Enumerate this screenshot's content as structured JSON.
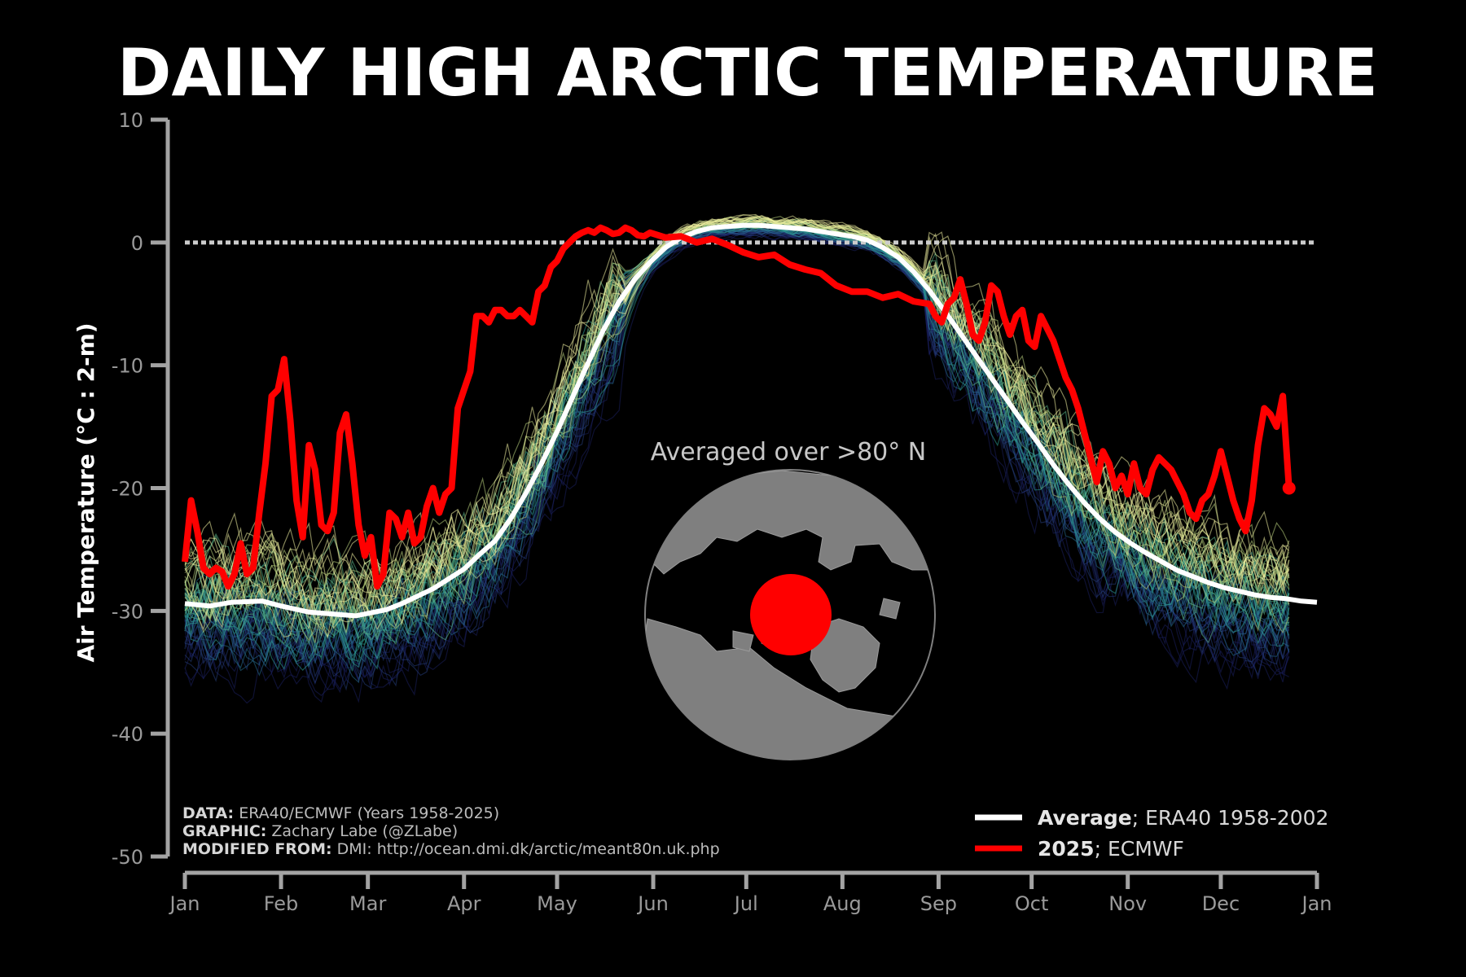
{
  "chart_data": {
    "type": "line",
    "title": "DAILY HIGH ARCTIC TEMPERATURE",
    "ylabel": "Air Temperature (°C : 2-m)",
    "xlabel": "",
    "ylim": [
      -50,
      10
    ],
    "yticks": [
      10,
      0,
      -10,
      -20,
      -30,
      -40,
      -50
    ],
    "xlim": [
      0,
      365
    ],
    "xticks": [
      {
        "label": "Jan",
        "day": 0
      },
      {
        "label": "Feb",
        "day": 31
      },
      {
        "label": "Mar",
        "day": 59
      },
      {
        "label": "Apr",
        "day": 90
      },
      {
        "label": "May",
        "day": 120
      },
      {
        "label": "Jun",
        "day": 151
      },
      {
        "label": "Jul",
        "day": 181
      },
      {
        "label": "Aug",
        "day": 212
      },
      {
        "label": "Sep",
        "day": 243
      },
      {
        "label": "Oct",
        "day": 273
      },
      {
        "label": "Nov",
        "day": 304
      },
      {
        "label": "Dec",
        "day": 334
      },
      {
        "label": "Jan",
        "day": 365
      }
    ],
    "reference_line": {
      "y": 0,
      "style": "dotted",
      "color": "#cccccc"
    },
    "series": [
      {
        "name": "Average; ERA40 1958-2002",
        "color": "#ffffff",
        "x": [
          0,
          8,
          15,
          25,
          31,
          40,
          50,
          55,
          59,
          65,
          70,
          80,
          90,
          95,
          100,
          105,
          110,
          115,
          120,
          125,
          130,
          135,
          140,
          145,
          150,
          155,
          160,
          165,
          170,
          175,
          180,
          185,
          190,
          195,
          200,
          205,
          210,
          215,
          220,
          225,
          230,
          235,
          240,
          245,
          250,
          255,
          260,
          265,
          270,
          275,
          280,
          285,
          290,
          295,
          300,
          305,
          310,
          315,
          320,
          325,
          330,
          335,
          340,
          345,
          350,
          355,
          360,
          365
        ],
        "y": [
          -29.4,
          -29.6,
          -29.3,
          -29.2,
          -29.6,
          -30.1,
          -30.3,
          -30.4,
          -30.2,
          -29.9,
          -29.4,
          -28.2,
          -26.6,
          -25.4,
          -24.3,
          -22.5,
          -20.4,
          -18.0,
          -15.4,
          -12.6,
          -9.8,
          -7.1,
          -4.8,
          -3.0,
          -1.6,
          -0.4,
          0.4,
          0.9,
          1.2,
          1.3,
          1.4,
          1.4,
          1.3,
          1.2,
          1.1,
          0.9,
          0.7,
          0.5,
          0.2,
          -0.4,
          -1.2,
          -2.4,
          -3.9,
          -5.6,
          -7.4,
          -9.2,
          -11.0,
          -12.8,
          -14.6,
          -16.3,
          -18.1,
          -19.7,
          -21.2,
          -22.5,
          -23.6,
          -24.5,
          -25.3,
          -26.0,
          -26.7,
          -27.2,
          -27.7,
          -28.1,
          -28.4,
          -28.7,
          -28.9,
          -29.0,
          -29.2,
          -29.3
        ]
      },
      {
        "name": "2025; ECMWF",
        "color": "#ff0000",
        "x": [
          0,
          2,
          4,
          6,
          8,
          10,
          12,
          14,
          16,
          18,
          20,
          22,
          24,
          26,
          28,
          30,
          32,
          34,
          36,
          38,
          40,
          42,
          44,
          46,
          48,
          50,
          52,
          54,
          56,
          58,
          60,
          62,
          64,
          66,
          68,
          70,
          72,
          74,
          76,
          78,
          80,
          82,
          84,
          86,
          88,
          90,
          92,
          94,
          96,
          98,
          100,
          102,
          104,
          106,
          108,
          110,
          112,
          114,
          116,
          118,
          120,
          122,
          124,
          126,
          128,
          130,
          132,
          134,
          136,
          138,
          140,
          142,
          144,
          146,
          148,
          150,
          155,
          160,
          165,
          170,
          175,
          180,
          185,
          190,
          195,
          200,
          205,
          210,
          215,
          220,
          225,
          230,
          235,
          240,
          242,
          244,
          246,
          248,
          250,
          252,
          254,
          256,
          258,
          260,
          262,
          264,
          266,
          268,
          270,
          272,
          274,
          276,
          278,
          280,
          282,
          284,
          286,
          288,
          290,
          292,
          294,
          296,
          298,
          300,
          302,
          304,
          306,
          308,
          310,
          312,
          314,
          316,
          318,
          320,
          322,
          324,
          326,
          328,
          330,
          332,
          334,
          336,
          338,
          340,
          342,
          344,
          346,
          348,
          350,
          352,
          354,
          356
        ],
        "y": [
          -26.0,
          -21.0,
          -23.5,
          -26.5,
          -27.0,
          -26.5,
          -26.8,
          -28.0,
          -27.0,
          -24.5,
          -27.0,
          -26.5,
          -22.0,
          -18.0,
          -12.5,
          -12.0,
          -9.5,
          -14.5,
          -21.0,
          -24.0,
          -16.5,
          -18.5,
          -23.0,
          -23.5,
          -22.0,
          -15.5,
          -14.0,
          -18.0,
          -23.0,
          -25.5,
          -24.0,
          -28.0,
          -27.0,
          -22.0,
          -22.5,
          -24.0,
          -22.0,
          -24.5,
          -24.0,
          -21.5,
          -20.0,
          -22.0,
          -20.5,
          -20.0,
          -13.5,
          -12.0,
          -10.5,
          -6.0,
          -6.0,
          -6.5,
          -5.5,
          -5.5,
          -6.0,
          -6.0,
          -5.5,
          -6.0,
          -6.5,
          -4.0,
          -3.5,
          -2.0,
          -1.5,
          -0.5,
          0.0,
          0.5,
          0.8,
          1.0,
          0.8,
          1.2,
          1.0,
          0.7,
          0.8,
          1.2,
          1.0,
          0.6,
          0.5,
          0.8,
          0.4,
          0.5,
          0.0,
          0.3,
          -0.2,
          -0.8,
          -1.2,
          -1.0,
          -1.8,
          -2.2,
          -2.5,
          -3.5,
          -4.0,
          -4.0,
          -4.5,
          -4.2,
          -4.8,
          -5.0,
          -6.0,
          -6.5,
          -5.0,
          -4.5,
          -3.0,
          -5.0,
          -7.5,
          -8.0,
          -6.5,
          -3.5,
          -4.0,
          -6.0,
          -7.5,
          -6.0,
          -5.5,
          -8.0,
          -8.5,
          -6.0,
          -7.0,
          -8.0,
          -9.5,
          -11.0,
          -12.0,
          -13.5,
          -15.5,
          -17.5,
          -19.5,
          -17.0,
          -18.0,
          -20.0,
          -19.0,
          -20.5,
          -18.0,
          -20.0,
          -20.5,
          -18.5,
          -17.5,
          -18.0,
          -18.5,
          -19.5,
          -20.5,
          -22.0,
          -22.5,
          -21.0,
          -20.5,
          -19.0,
          -17.0,
          -19.0,
          -21.0,
          -22.5,
          -23.5,
          -21.0,
          -16.5,
          -13.5,
          -14.0,
          -15.0,
          -12.5,
          -20.0
        ]
      }
    ],
    "ensemble": {
      "count": 68,
      "colormap": [
        "#1a1f5c",
        "#243c7a",
        "#266b8e",
        "#2d9a92",
        "#5cb88a",
        "#b9d27e",
        "#f0f0a0"
      ]
    },
    "inset": {
      "label": "Averaged over >80° N",
      "land_color": "#7f7f7f",
      "ocean_color": "#000000",
      "region_color": "#ff0000"
    },
    "legend": {
      "placement": "bottom-right",
      "entries": [
        {
          "bold": "Average",
          "rest": "; ERA40 1958-2002",
          "color": "#ffffff"
        },
        {
          "bold": "2025",
          "rest": "; ECMWF",
          "color": "#ff0000"
        }
      ]
    },
    "credits": [
      {
        "bold": "DATA:",
        "rest": " ERA40/ECMWF (Years 1958-2025)"
      },
      {
        "bold": "GRAPHIC:",
        "rest": " Zachary Labe (@ZLabe)"
      },
      {
        "bold": "MODIFIED FROM:",
        "rest": " DMI: http://ocean.dmi.dk/arctic/meant80n.uk.php"
      }
    ]
  }
}
